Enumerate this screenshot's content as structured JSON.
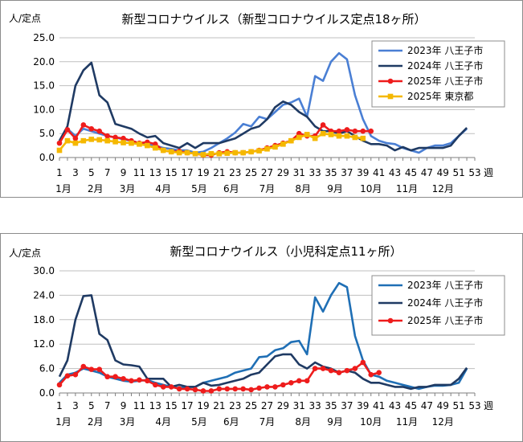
{
  "chart_data": [
    {
      "type": "line",
      "title": "新型コロナウイルス（新型コロナウイルス定点18ヶ所）",
      "ylabel": "人/定点",
      "xlabel": "週",
      "ylim": [
        0,
        25
      ],
      "yticks": [
        "0.0",
        "5.0",
        "10.0",
        "15.0",
        "20.0",
        "25.0"
      ],
      "xlim": [
        1,
        53
      ],
      "xticks": [
        "1",
        "3",
        "5",
        "7",
        "9",
        "11",
        "13",
        "15",
        "17",
        "19",
        "21",
        "23",
        "25",
        "27",
        "29",
        "31",
        "33",
        "35",
        "37",
        "39",
        "41",
        "43",
        "45",
        "47",
        "49",
        "51",
        "53"
      ],
      "months": [
        "1月",
        "2月",
        "3月",
        "4月",
        "5月",
        "6月",
        "7月",
        "8月",
        "9月",
        "10月",
        "11月",
        "12月"
      ],
      "grid": "horizontal",
      "legend_position": "top-right",
      "series": [
        {
          "name": "2023年 八王子市",
          "color": "#4a7fd4",
          "marker": "none",
          "values": [
            3.0,
            6.0,
            4.5,
            6.0,
            5.5,
            5.0,
            4.5,
            4.2,
            3.8,
            3.5,
            3.0,
            2.8,
            2.5,
            2.0,
            1.8,
            1.5,
            1.5,
            1.0,
            1.2,
            2.0,
            3.0,
            4.0,
            5.2,
            7.0,
            6.5,
            8.5,
            8.0,
            9.5,
            11.0,
            11.5,
            12.3,
            8.5,
            17.0,
            16.0,
            20.0,
            21.8,
            20.5,
            13.0,
            8.0,
            4.5,
            3.5,
            3.0,
            2.8,
            2.0,
            1.5,
            1.0,
            2.0,
            2.5,
            2.5,
            3.0,
            4.5,
            6.0
          ]
        },
        {
          "name": "2024年 八王子市",
          "color": "#1f3a63",
          "marker": "none",
          "values": [
            3.5,
            6.5,
            15.0,
            18.2,
            19.8,
            13.0,
            11.5,
            7.0,
            6.5,
            6.0,
            5.0,
            4.2,
            4.5,
            3.0,
            2.5,
            2.0,
            3.0,
            2.0,
            3.0,
            3.0,
            3.0,
            3.5,
            4.0,
            5.0,
            6.0,
            6.5,
            8.0,
            10.5,
            11.7,
            11.0,
            9.5,
            8.5,
            6.5,
            5.5,
            5.5,
            5.0,
            5.5,
            4.5,
            3.5,
            2.8,
            2.8,
            2.5,
            1.5,
            2.2,
            1.5,
            2.0,
            2.0,
            2.0,
            2.0,
            2.5,
            4.5,
            6.2
          ]
        },
        {
          "name": "2025年 八王子市",
          "color": "#ee1c1c",
          "marker": "circle",
          "values": [
            3.0,
            5.8,
            4.0,
            6.8,
            6.0,
            5.5,
            4.5,
            4.2,
            4.0,
            3.5,
            3.0,
            3.2,
            2.8,
            1.5,
            1.2,
            1.3,
            1.0,
            0.8,
            0.5,
            0.5,
            1.0,
            1.2,
            1.0,
            1.0,
            1.2,
            1.5,
            2.0,
            2.5,
            3.0,
            3.5,
            5.0,
            4.5,
            4.5,
            6.8,
            5.5,
            5.5,
            5.8,
            5.5,
            5.5,
            5.5
          ]
        },
        {
          "name": "2025年 東京都",
          "color": "#f5b800",
          "marker": "square",
          "values": [
            1.5,
            3.5,
            3.0,
            3.5,
            3.8,
            3.7,
            3.5,
            3.3,
            3.1,
            3.0,
            2.8,
            2.5,
            2.0,
            1.5,
            1.2,
            1.0,
            1.0,
            0.8,
            0.6,
            0.8,
            0.8,
            0.9,
            1.0,
            1.0,
            1.2,
            1.4,
            1.8,
            2.2,
            2.8,
            3.5,
            4.2,
            4.8,
            4.0,
            5.0,
            4.8,
            4.5,
            4.5,
            4.2,
            4.0
          ]
        }
      ]
    },
    {
      "type": "line",
      "title": "新型コロナウイルス（小児科定点11ヶ所）",
      "ylabel": "人/定点",
      "xlabel": "週",
      "ylim": [
        0,
        30
      ],
      "yticks": [
        "0.0",
        "6.0",
        "12.0",
        "18.0",
        "24.0",
        "30.0"
      ],
      "xlim": [
        1,
        53
      ],
      "xticks": [
        "1",
        "3",
        "5",
        "7",
        "9",
        "11",
        "13",
        "15",
        "17",
        "19",
        "21",
        "23",
        "25",
        "27",
        "29",
        "31",
        "33",
        "35",
        "37",
        "39",
        "41",
        "43",
        "45",
        "47",
        "49",
        "51",
        "53"
      ],
      "months": [
        "1月",
        "2月",
        "3月",
        "4月",
        "5月",
        "6月",
        "7月",
        "8月",
        "9月",
        "10月",
        "11月",
        "12月"
      ],
      "grid": "horizontal",
      "legend_position": "top-right",
      "series": [
        {
          "name": "2023年 八王子市",
          "color": "#1f6fb5",
          "marker": "none",
          "values": [
            2.5,
            4.5,
            5.0,
            6.0,
            5.5,
            5.0,
            4.0,
            3.5,
            3.0,
            2.8,
            3.0,
            3.2,
            2.5,
            2.0,
            1.5,
            1.2,
            1.5,
            1.5,
            2.5,
            3.0,
            3.5,
            4.0,
            5.0,
            5.5,
            6.0,
            8.8,
            9.0,
            10.5,
            11.0,
            12.5,
            12.8,
            9.5,
            23.5,
            20.0,
            24.0,
            27.0,
            26.0,
            14.0,
            8.0,
            4.5,
            4.0,
            3.0,
            2.5,
            2.0,
            1.5,
            1.0,
            1.5,
            1.8,
            1.8,
            2.0,
            2.5,
            6.0
          ]
        },
        {
          "name": "2024年 八王子市",
          "color": "#1f3a63",
          "marker": "none",
          "values": [
            4.0,
            8.0,
            18.0,
            23.8,
            24.0,
            14.5,
            13.0,
            8.0,
            7.0,
            6.8,
            6.5,
            3.5,
            3.5,
            3.5,
            1.5,
            2.0,
            1.5,
            1.5,
            2.5,
            1.8,
            2.0,
            2.5,
            3.0,
            3.5,
            4.5,
            5.0,
            7.0,
            9.0,
            9.5,
            9.5,
            7.0,
            6.0,
            7.5,
            6.5,
            6.0,
            5.0,
            5.5,
            5.0,
            3.5,
            2.5,
            2.5,
            2.0,
            1.5,
            1.5,
            1.0,
            1.5,
            1.5,
            2.0,
            2.0,
            2.0,
            3.5,
            6.2
          ]
        },
        {
          "name": "2025年 八王子市",
          "color": "#ee1c1c",
          "marker": "circle",
          "values": [
            2.0,
            4.2,
            4.5,
            6.5,
            5.8,
            5.8,
            4.0,
            4.0,
            3.5,
            3.0,
            3.2,
            3.0,
            2.0,
            1.5,
            1.5,
            1.0,
            1.0,
            0.8,
            0.5,
            0.5,
            1.0,
            1.0,
            1.0,
            1.0,
            0.8,
            1.2,
            1.5,
            1.5,
            2.0,
            2.5,
            3.0,
            3.0,
            6.0,
            6.0,
            5.5,
            5.0,
            5.5,
            6.0,
            7.5,
            4.5,
            5.0
          ]
        }
      ]
    }
  ]
}
